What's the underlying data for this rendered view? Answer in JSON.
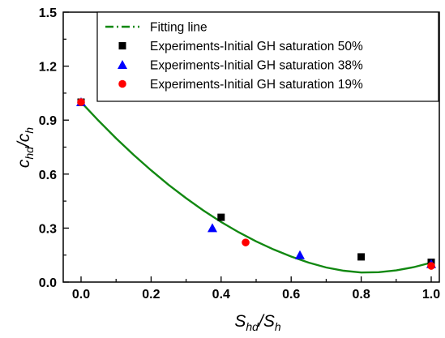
{
  "chart_data": {
    "type": "scatter",
    "xlim": [
      0,
      1.0
    ],
    "ylim": [
      0,
      1.5
    ],
    "x_ticks": [
      "0.0",
      "0.2",
      "0.4",
      "0.6",
      "0.8",
      "1.0"
    ],
    "y_ticks": [
      "0.0",
      "0.3",
      "0.6",
      "0.9",
      "1.2",
      "1.5"
    ],
    "xlabel": {
      "main1": "S",
      "sub1": "hd",
      "slash": "/",
      "main2": "S",
      "sub2": "h"
    },
    "ylabel": {
      "main1": "c",
      "sub1": "hd",
      "slash": "/",
      "main2": "c",
      "sub2": "h"
    },
    "legend_position": "top-right",
    "fit": {
      "name": "Fitting line",
      "color": "#118811",
      "x": [
        0.0,
        0.05,
        0.1,
        0.15,
        0.2,
        0.25,
        0.3,
        0.35,
        0.4,
        0.45,
        0.5,
        0.55,
        0.6,
        0.65,
        0.7,
        0.75,
        0.8,
        0.85,
        0.9,
        0.95,
        1.0
      ],
      "y": [
        1.0,
        0.897,
        0.799,
        0.707,
        0.621,
        0.54,
        0.466,
        0.397,
        0.334,
        0.277,
        0.226,
        0.181,
        0.142,
        0.108,
        0.081,
        0.063,
        0.053,
        0.055,
        0.065,
        0.083,
        0.108
      ]
    },
    "series": [
      {
        "name": "Experiments-Initial GH saturation 50%",
        "marker": "square",
        "color": "#000000",
        "x": [
          0.0,
          0.4,
          0.8,
          1.0
        ],
        "y": [
          1.0,
          0.36,
          0.14,
          0.11
        ]
      },
      {
        "name": "Experiments-Initial GH saturation 38%",
        "marker": "triangle",
        "color": "#0000ff",
        "x": [
          0.0,
          0.375,
          0.625,
          1.0
        ],
        "y": [
          1.0,
          0.3,
          0.15,
          0.1
        ]
      },
      {
        "name": "Experiments-Initial GH saturation 19%",
        "marker": "circle",
        "color": "#ff0000",
        "x": [
          0.0,
          0.47,
          1.0
        ],
        "y": [
          1.0,
          0.22,
          0.09
        ]
      }
    ]
  }
}
